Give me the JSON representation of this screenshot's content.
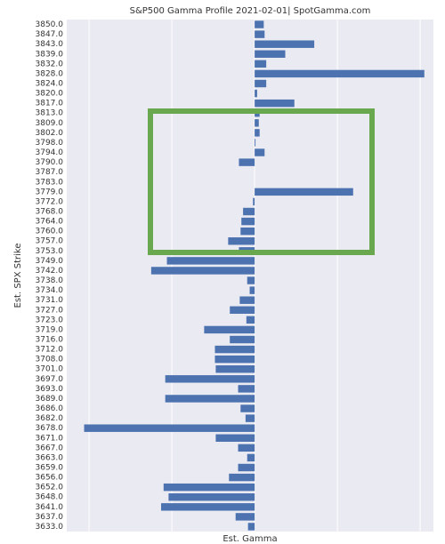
{
  "chart_data": {
    "type": "barh",
    "title": "S&P500 Gamma Profile 2021-02-01| SpotGamma.com",
    "x_label": "Est. Gamma",
    "y_label": "Est. SPX Strike",
    "categories": [
      "3850.0",
      "3847.0",
      "3843.0",
      "3839.0",
      "3832.0",
      "3828.0",
      "3824.0",
      "3820.0",
      "3817.0",
      "3813.0",
      "3809.0",
      "3802.0",
      "3798.0",
      "3794.0",
      "3790.0",
      "3787.0",
      "3783.0",
      "3779.0",
      "3772.0",
      "3768.0",
      "3764.0",
      "3760.0",
      "3757.0",
      "3753.0",
      "3749.0",
      "3742.0",
      "3738.0",
      "3734.0",
      "3731.0",
      "3727.0",
      "3723.0",
      "3719.0",
      "3716.0",
      "3712.0",
      "3708.0",
      "3701.0",
      "3697.0",
      "3693.0",
      "3689.0",
      "3686.0",
      "3682.0",
      "3678.0",
      "3671.0",
      "3667.0",
      "3663.0",
      "3659.0",
      "3656.0",
      "3652.0",
      "3648.0",
      "3641.0",
      "3637.0",
      "3633.0"
    ],
    "values": [
      0.11,
      0.12,
      0.72,
      0.37,
      0.14,
      2.05,
      0.14,
      0.03,
      0.48,
      0.06,
      0.05,
      0.06,
      0.01,
      0.12,
      -0.19,
      0,
      0,
      1.19,
      -0.02,
      -0.14,
      -0.16,
      -0.17,
      -0.32,
      -0.19,
      -1.06,
      -1.25,
      -0.09,
      -0.06,
      -0.18,
      -0.3,
      -0.1,
      -0.61,
      -0.3,
      -0.48,
      -0.48,
      -0.47,
      -1.08,
      -0.2,
      -1.08,
      -0.17,
      -0.11,
      -2.06,
      -0.47,
      -0.2,
      -0.09,
      -0.2,
      -0.31,
      -1.1,
      -1.04,
      -1.13,
      -0.23,
      -0.08
    ],
    "color": "#4c72b0",
    "xlim": [
      -2.27,
      2.16
    ],
    "xticks": [
      -2,
      -1,
      0,
      1,
      2
    ],
    "grid": true
  }
}
